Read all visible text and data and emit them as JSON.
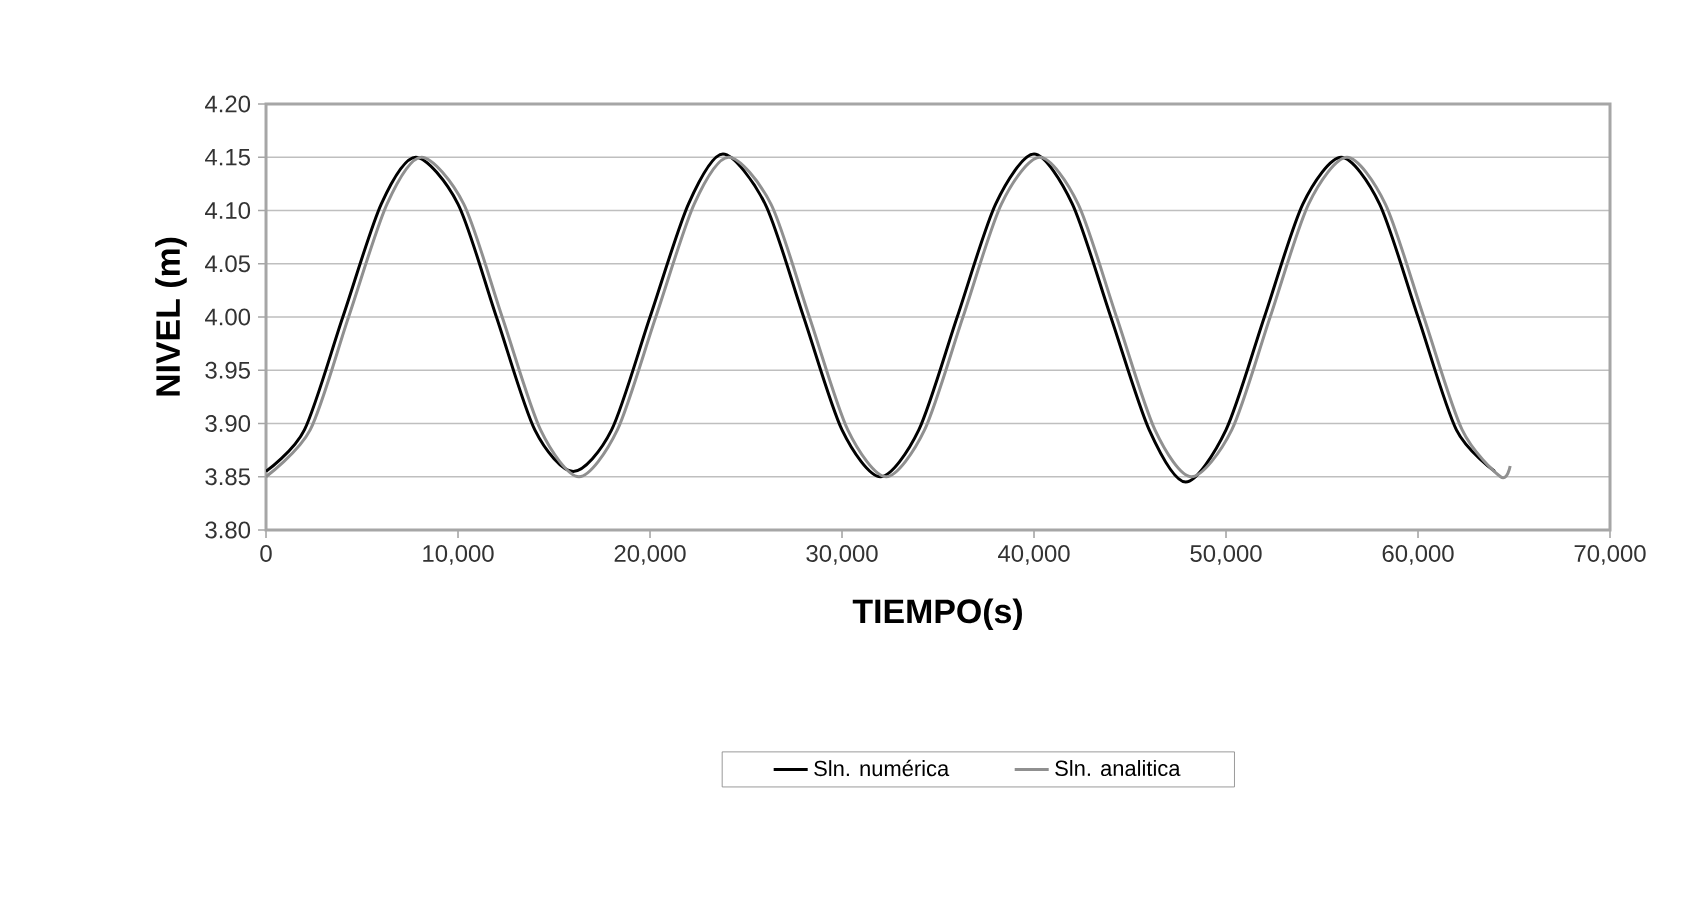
{
  "chart_data": {
    "type": "line",
    "xlabel": "TIEMPO(s)",
    "ylabel": "NIVEL (m)",
    "xlim": [
      0,
      70000
    ],
    "ylim": [
      3.8,
      4.2
    ],
    "xticks": [
      0,
      {
        "value": 10000,
        "label": "10,000"
      },
      {
        "value": 20000,
        "label": "20,000"
      },
      {
        "value": 30000,
        "label": "30,000"
      },
      {
        "value": 40000,
        "label": "40,000"
      },
      {
        "value": 50000,
        "label": "50,000"
      },
      {
        "value": 60000,
        "label": "60,000"
      },
      {
        "value": 70000,
        "label": "70,000"
      }
    ],
    "yticks": [
      {
        "value": 3.8,
        "label": "3.80"
      },
      {
        "value": 3.85,
        "label": "3.85"
      },
      {
        "value": 3.9,
        "label": "3.90"
      },
      {
        "value": 3.95,
        "label": "3.95"
      },
      {
        "value": 4.0,
        "label": "4.00"
      },
      {
        "value": 4.05,
        "label": "4.05"
      },
      {
        "value": 4.1,
        "label": "4.10"
      },
      {
        "value": 4.15,
        "label": "4.15"
      },
      {
        "value": 4.2,
        "label": "4.20"
      }
    ],
    "grid": "y",
    "legend": "bottom",
    "marker": "none",
    "series": [
      {
        "name": "Sln. numérica",
        "color": "#000000",
        "line_style": "solid",
        "x": [
          0,
          2000,
          4000,
          6000,
          7800,
          10000,
          12000,
          14000,
          16000,
          18000,
          20000,
          22000,
          23800,
          26000,
          28000,
          30000,
          32000,
          34000,
          36000,
          38000,
          40000,
          42000,
          44000,
          46000,
          47900,
          50000,
          52000,
          54000,
          56000,
          58000,
          60000,
          62000,
          64000
        ],
        "values": [
          3.855,
          3.894,
          4.0,
          4.106,
          4.15,
          4.106,
          4.0,
          3.894,
          3.855,
          3.894,
          4.0,
          4.106,
          4.153,
          4.106,
          4.0,
          3.894,
          3.85,
          3.894,
          4.0,
          4.106,
          4.153,
          4.106,
          4.0,
          3.894,
          3.845,
          3.894,
          4.0,
          4.106,
          4.15,
          4.106,
          4.0,
          3.894,
          3.855
        ]
      },
      {
        "name": "Sln. analitica",
        "color": "#909090",
        "line_style": "solid",
        "x": [
          0,
          2300,
          4300,
          6300,
          8100,
          10300,
          12300,
          14300,
          16300,
          18300,
          20300,
          22300,
          24100,
          26300,
          28300,
          30300,
          32300,
          34300,
          36300,
          38300,
          40300,
          42300,
          44300,
          46300,
          48200,
          50300,
          52300,
          54300,
          56300,
          58300,
          60300,
          62300,
          64300,
          64800
        ],
        "values": [
          3.85,
          3.894,
          4.0,
          4.106,
          4.15,
          4.106,
          4.0,
          3.894,
          3.85,
          3.894,
          4.0,
          4.106,
          4.15,
          4.106,
          4.0,
          3.894,
          3.85,
          3.894,
          4.0,
          4.106,
          4.15,
          4.106,
          4.0,
          3.894,
          3.85,
          3.894,
          4.0,
          4.106,
          4.15,
          4.106,
          4.0,
          3.894,
          3.85,
          3.86
        ]
      }
    ]
  }
}
